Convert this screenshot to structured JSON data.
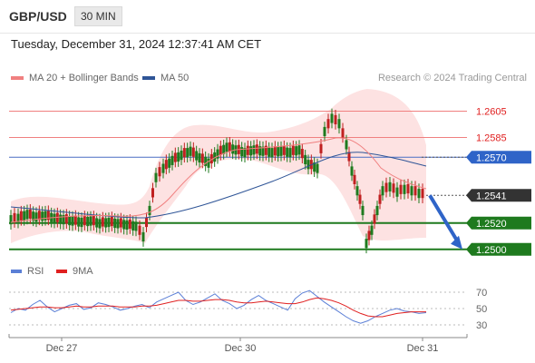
{
  "header": {
    "symbol": "GBP/USD",
    "timeframe": "30 MIN"
  },
  "datetime": "Tuesday, December 31, 2024 12:37:41 AM CET",
  "credit": "Research © 2024 Trading Central",
  "legend": [
    {
      "label": "MA 20 + Bollinger Bands",
      "color": "#f08080"
    },
    {
      "label": "MA 50",
      "color": "#2f5597"
    }
  ],
  "rsi_legend": [
    {
      "label": "RSI",
      "color": "#5b7fd6"
    },
    {
      "label": "9MA",
      "color": "#e02020"
    }
  ],
  "chart_data": {
    "type": "candlestick",
    "price_axis": {
      "min": 1.2495,
      "max": 1.2615
    },
    "x_ticks": [
      "Dec 27",
      "Dec 30",
      "Dec 31"
    ],
    "levels": [
      {
        "value": 1.2605,
        "label": "1.2605",
        "style": "resistance-red"
      },
      {
        "value": 1.2585,
        "label": "1.2585",
        "style": "resistance-red"
      },
      {
        "value": 1.257,
        "label": "1.2570",
        "style": "pivot-blue"
      },
      {
        "value": 1.2541,
        "label": "1.2541",
        "style": "last-price"
      },
      {
        "value": 1.252,
        "label": "1.2520",
        "style": "support-green"
      },
      {
        "value": 1.25,
        "label": "1.2500",
        "style": "support-green"
      }
    ],
    "forecast": {
      "from": 1.2541,
      "to": 1.25,
      "direction": "down"
    },
    "rsi": {
      "ticks": [
        {
          "value": 70,
          "label": "70"
        },
        {
          "value": 50,
          "label": "50"
        },
        {
          "value": 30,
          "label": "30"
        }
      ],
      "series": [
        {
          "name": "RSI",
          "values": [
            45,
            50,
            48,
            55,
            60,
            52,
            46,
            50,
            54,
            56,
            49,
            51,
            57,
            55,
            52,
            48,
            50,
            53,
            55,
            51,
            58,
            62,
            66,
            70,
            60,
            55,
            58,
            63,
            68,
            60,
            56,
            50,
            54,
            61,
            66,
            60,
            56,
            52,
            48,
            62,
            69,
            72,
            65,
            58,
            52,
            46,
            40,
            35,
            32,
            35,
            40,
            44,
            48,
            50,
            47,
            46,
            44,
            45
          ]
        },
        {
          "name": "9MA",
          "values": [
            48,
            49,
            50,
            51,
            52,
            52,
            51,
            51,
            52,
            53,
            52,
            52,
            53,
            53,
            53,
            52,
            52,
            52,
            53,
            53,
            54,
            56,
            58,
            60,
            60,
            59,
            59,
            60,
            61,
            61,
            60,
            58,
            57,
            57,
            58,
            59,
            58,
            57,
            56,
            56,
            58,
            61,
            63,
            62,
            60,
            57,
            53,
            48,
            44,
            41,
            40,
            40,
            42,
            44,
            45,
            46,
            46,
            46
          ]
        }
      ]
    }
  }
}
